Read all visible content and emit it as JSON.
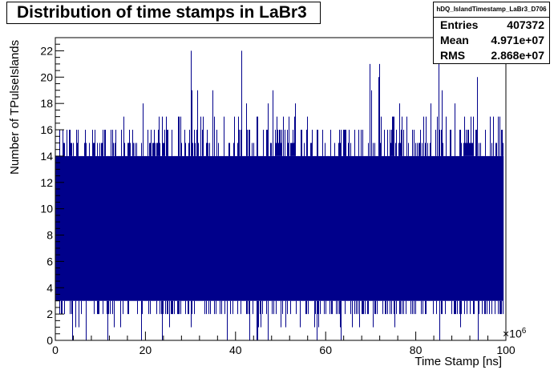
{
  "chart_data": {
    "type": "bar",
    "title": "Distribution of time stamps in LaBr3",
    "xlabel": "Time Stamp [ns]",
    "ylabel": "Number of TPulseIslands",
    "x_exponent": "×10",
    "x_exponent_power": "6",
    "xlim": [
      0,
      100
    ],
    "ylim": [
      0,
      23
    ],
    "x_ticks": [
      0,
      20,
      40,
      60,
      80,
      100
    ],
    "y_ticks": [
      0,
      2,
      4,
      6,
      8,
      10,
      12,
      14,
      16,
      18,
      20,
      22
    ],
    "x_tick_labels": [
      "0",
      "20",
      "40",
      "60",
      "80",
      "100"
    ],
    "y_tick_labels": [
      "0",
      "2",
      "4",
      "6",
      "8",
      "10",
      "12",
      "14",
      "16",
      "18",
      "20",
      "22"
    ],
    "data_range": [
      0,
      99.5
    ],
    "bulk_range": [
      3,
      14
    ],
    "max_value": 22,
    "min_value": 0,
    "grid": false,
    "legend": "top-right",
    "fill_color": "#00008b",
    "stats": {
      "name": "hDQ_IslandTimestamp_LaBr3_D706",
      "entries_label": "Entries",
      "entries": "407372",
      "mean_label": "Mean",
      "mean": "4.971e+07",
      "rms_label": "RMS",
      "rms": "2.868e+07"
    }
  }
}
